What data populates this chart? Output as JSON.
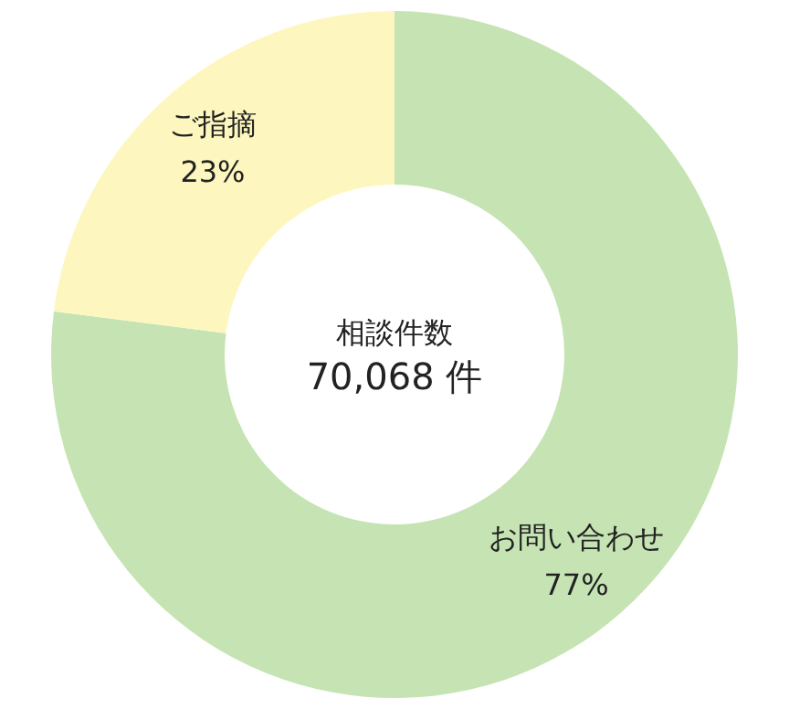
{
  "chart_data": {
    "type": "donut",
    "categories": [
      "お問い合わせ",
      "ご指摘"
    ],
    "values": [
      77,
      23
    ],
    "colors": [
      "#c6e4b3",
      "#fdf7bf"
    ],
    "value_labels": [
      "77%",
      "23%"
    ],
    "annotations": [
      "相談件数",
      "70,068 件"
    ]
  }
}
